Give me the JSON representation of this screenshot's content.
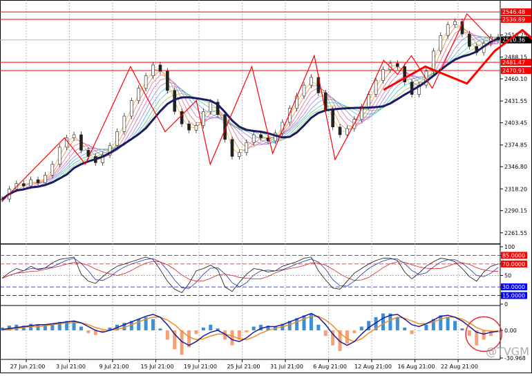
{
  "chart_data": {
    "type": "line",
    "watermark": "@TVGM",
    "x_labels": [
      "27 Jun 21:00",
      "3 Jul 21:00",
      "9 Jul 21:00",
      "15 Jul 21:00",
      "19 Jul 21:00",
      "25 Jul 21:00",
      "31 Jul 21:00",
      "6 Aug 21:00",
      "12 Aug 21:00",
      "16 Aug 21:00",
      "22 Aug 21:00"
    ],
    "price_panel": {
      "ylim": [
        2248,
        2552
      ],
      "y_ticks": [
        "2536.89",
        "2516.75",
        "2488.15",
        "2460.10",
        "2431.55",
        "2403.45",
        "2374.85",
        "2346.80",
        "2318.20",
        "2290.15",
        "2261.55"
      ],
      "y_tick_values": [
        2536.89,
        2516.75,
        2488.15,
        2460.1,
        2431.55,
        2403.45,
        2374.85,
        2346.8,
        2318.2,
        2290.15,
        2261.55
      ],
      "horizontal_levels": [
        {
          "label": "2546.48",
          "value": 2546.48,
          "color": "#ff0000"
        },
        {
          "label": "2536.89",
          "value": 2536.89,
          "color": "#ff0000"
        },
        {
          "label": "2481.47",
          "value": 2481.47,
          "color": "#ff0000"
        },
        {
          "label": "2470.91",
          "value": 2470.91,
          "color": "#ff0000"
        }
      ],
      "current_price": {
        "label": "2510.36",
        "value": 2510.36
      },
      "close": [
        2305,
        2318,
        2325,
        2322,
        2330,
        2326,
        2336,
        2350,
        2372,
        2384,
        2388,
        2368,
        2360,
        2352,
        2362,
        2374,
        2392,
        2412,
        2432,
        2448,
        2464,
        2478,
        2470,
        2445,
        2418,
        2402,
        2394,
        2400,
        2418,
        2430,
        2414,
        2382,
        2360,
        2365,
        2378,
        2388,
        2384,
        2380,
        2390,
        2404,
        2422,
        2438,
        2452,
        2462,
        2442,
        2420,
        2398,
        2388,
        2396,
        2408,
        2424,
        2440,
        2458,
        2472,
        2480,
        2476,
        2456,
        2440,
        2452,
        2470,
        2496,
        2516,
        2530,
        2534,
        2518,
        2502,
        2494,
        2506,
        2514,
        2510
      ],
      "series_colors": {
        "long_ma": "#1a1a66",
        "short_ma": "#f4a020"
      },
      "ribbon_colors": [
        "#f4a020",
        "#e07840",
        "#e05a80",
        "#c060c0",
        "#9070d8",
        "#50a0e0",
        "#40c0a0",
        "#80c840",
        "#d0d040"
      ],
      "zigzag_color": "#ff0000",
      "zigzag": [
        [
          0,
          2302
        ],
        [
          18,
          2384
        ],
        [
          24,
          2350
        ],
        [
          37,
          2476
        ],
        [
          47,
          2392
        ],
        [
          56,
          2432
        ],
        [
          60,
          2350
        ],
        [
          72,
          2476
        ],
        [
          78,
          2364
        ],
        [
          90,
          2490
        ],
        [
          96,
          2356
        ],
        [
          102,
          2406
        ],
        [
          110,
          2484
        ],
        [
          114,
          2466
        ],
        [
          118,
          2490
        ],
        [
          124,
          2448
        ],
        [
          134,
          2544
        ],
        [
          140,
          2516
        ],
        [
          142,
          2508
        ]
      ],
      "forecast_path": [
        [
          110,
          2446
        ],
        [
          122,
          2476
        ],
        [
          134,
          2454
        ],
        [
          142,
          2496
        ],
        [
          150,
          2523
        ],
        [
          158,
          2492
        ],
        [
          164,
          2530
        ],
        [
          172,
          2508
        ]
      ]
    },
    "rsi_panel": {
      "ylim": [
        0,
        100
      ],
      "y_ticks": [
        "100",
        "85.0000",
        "70.0000",
        "50",
        "30.0000",
        "15.0000",
        "0"
      ],
      "levels": [
        {
          "label": "85.0000",
          "value": 85,
          "color": "#ff0000"
        },
        {
          "label": "70.0000",
          "value": 70,
          "color": "#ff0000"
        },
        {
          "label": "50",
          "value": 50,
          "color": "#888888"
        },
        {
          "label": "30.0000",
          "value": 30,
          "color": "#0000ff"
        },
        {
          "label": "15.0000",
          "value": 15,
          "color": "#0000ff"
        }
      ],
      "rsi": [
        45,
        55,
        62,
        58,
        66,
        60,
        63,
        72,
        78,
        80,
        82,
        52,
        40,
        36,
        48,
        58,
        66,
        70,
        74,
        78,
        82,
        78,
        60,
        40,
        26,
        20,
        36,
        58,
        62,
        68,
        60,
        30,
        22,
        38,
        52,
        62,
        60,
        56,
        58,
        66,
        70,
        74,
        80,
        82,
        58,
        42,
        28,
        26,
        40,
        54,
        62,
        70,
        76,
        80,
        80,
        76,
        56,
        44,
        54,
        66,
        74,
        80,
        78,
        74,
        62,
        48,
        40,
        56,
        66,
        70
      ]
    },
    "macd_panel": {
      "ylim": [
        -30.968,
        25
      ],
      "y_ticks": [
        "0.00",
        "-30.968"
      ],
      "histogram": [
        3,
        5,
        6,
        5,
        7,
        6,
        6,
        7,
        9,
        10,
        10,
        4,
        -3,
        -5,
        -2,
        3,
        6,
        8,
        10,
        12,
        14,
        12,
        2,
        -10,
        -20,
        -26,
        -18,
        -4,
        3,
        6,
        2,
        -10,
        -16,
        -10,
        -2,
        4,
        6,
        5,
        4,
        7,
        10,
        13,
        16,
        18,
        6,
        -6,
        -16,
        -22,
        -14,
        -3,
        4,
        10,
        14,
        18,
        18,
        14,
        3,
        -4,
        0,
        6,
        12,
        16,
        14,
        10,
        2,
        -6,
        -16,
        -10,
        -6,
        -2
      ],
      "macd_line": [
        1,
        2,
        3,
        4,
        5,
        6,
        6,
        7,
        8,
        9,
        10,
        8,
        4,
        0,
        -2,
        0,
        3,
        6,
        9,
        12,
        15,
        17,
        14,
        6,
        -4,
        -12,
        -16,
        -12,
        -6,
        -2,
        0,
        -4,
        -10,
        -12,
        -8,
        -2,
        2,
        4,
        4,
        6,
        9,
        12,
        15,
        18,
        14,
        6,
        -4,
        -12,
        -16,
        -12,
        -4,
        3,
        8,
        13,
        16,
        17,
        12,
        6,
        4,
        7,
        11,
        15,
        16,
        14,
        10,
        4,
        -2,
        -4,
        -2,
        -1
      ],
      "signal_line": [
        0,
        1,
        2,
        3,
        4,
        4,
        5,
        6,
        7,
        8,
        8,
        8,
        6,
        3,
        1,
        0,
        1,
        3,
        6,
        9,
        12,
        14,
        14,
        11,
        6,
        -1,
        -7,
        -10,
        -9,
        -6,
        -4,
        -4,
        -6,
        -9,
        -10,
        -7,
        -3,
        0,
        2,
        4,
        6,
        9,
        12,
        15,
        15,
        11,
        5,
        -3,
        -9,
        -12,
        -9,
        -3,
        2,
        7,
        11,
        14,
        13,
        10,
        7,
        7,
        9,
        12,
        14,
        14,
        12,
        8,
        3,
        0,
        -1,
        -1
      ],
      "bar_positive_color": "#3d8fd6",
      "bar_negative_color": "#f4a078",
      "macd_color": "#1a1a99",
      "signal_color": "#f08c1e"
    }
  }
}
